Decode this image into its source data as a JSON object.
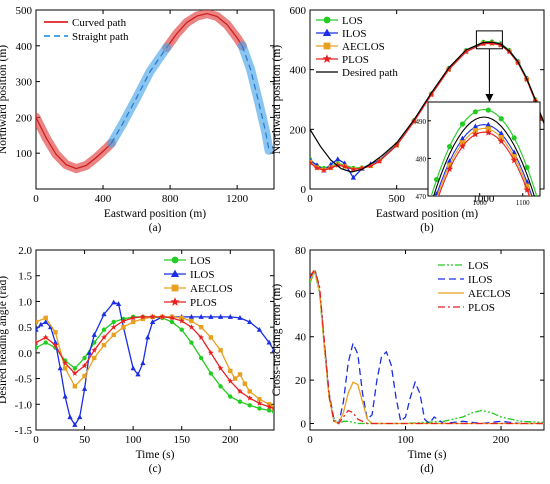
{
  "chart_data": [
    {
      "type": "line",
      "panel_label": "(a)",
      "xlabel": "Eastward position (m)",
      "ylabel": "Northward position (m)",
      "xlim": [
        0,
        1420
      ],
      "ylim": [
        0,
        500
      ],
      "xticks": [
        0,
        400,
        800,
        1200
      ],
      "yticks": [
        100,
        200,
        300,
        400,
        500
      ],
      "legend_position": "top-left",
      "series": [
        {
          "name": "Curved path",
          "color": "#e04040",
          "style": "solid-thick",
          "segments": [
            {
              "x": [
                0,
                60,
                120,
                180,
                240,
                300,
                360,
                420,
                450
              ],
              "y": [
                200,
                143,
                97,
                68,
                57,
                66,
                88,
                114,
                128
              ]
            },
            {
              "x": [
                780,
                840,
                900,
                960,
                1020,
                1080,
                1140,
                1200,
                1230
              ],
              "y": [
                395,
                434,
                465,
                483,
                490,
                482,
                459,
                422,
                400
              ]
            }
          ]
        },
        {
          "name": "Straight path",
          "color": "#4aa6e8",
          "style": "dashed-thick",
          "segments": [
            {
              "x": [
                450,
                520,
                600,
                680,
                780
              ],
              "y": [
                128,
                185,
                255,
                328,
                395
              ]
            },
            {
              "x": [
                1230,
                1280,
                1330,
                1370,
                1390
              ],
              "y": [
                400,
                335,
                240,
                160,
                108
              ]
            }
          ]
        }
      ]
    },
    {
      "type": "line",
      "panel_label": "(b)",
      "xlabel": "Eastward position (m)",
      "ylabel": "Northward position (m)",
      "xlim": [
        0,
        1350
      ],
      "ylim": [
        0,
        600
      ],
      "xticks": [
        0,
        500,
        1000
      ],
      "yticks": [
        0,
        200,
        400,
        600
      ],
      "legend_position": "top-left",
      "series": [
        {
          "name": "LOS",
          "color": "#22cc22",
          "marker": "circle",
          "x": [
            0,
            40,
            80,
            120,
            160,
            200,
            250,
            300,
            350,
            400,
            500,
            600,
            700,
            800,
            900,
            1000,
            1050,
            1100,
            1150,
            1200,
            1250,
            1300,
            1330
          ],
          "y": [
            100,
            78,
            70,
            76,
            86,
            80,
            70,
            72,
            80,
            96,
            150,
            230,
            320,
            405,
            465,
            493,
            494,
            488,
            465,
            428,
            372,
            300,
            240
          ]
        },
        {
          "name": "ILOS",
          "color": "#1a2ee6",
          "marker": "triangle",
          "x": [
            0,
            40,
            80,
            120,
            160,
            200,
            250,
            300,
            350,
            400,
            500,
            600,
            700,
            800,
            900,
            1000,
            1050,
            1100,
            1150,
            1200,
            1250,
            1300,
            1330
          ],
          "y": [
            95,
            80,
            62,
            82,
            100,
            86,
            38,
            68,
            84,
            96,
            148,
            228,
            318,
            402,
            462,
            489,
            490,
            484,
            463,
            426,
            370,
            298,
            238
          ]
        },
        {
          "name": "AECLOS",
          "color": "#e8a020",
          "marker": "square",
          "x": [
            0,
            40,
            80,
            120,
            160,
            200,
            250,
            300,
            350,
            400,
            500,
            600,
            700,
            800,
            900,
            1000,
            1050,
            1100,
            1150,
            1200,
            1250,
            1300,
            1330
          ],
          "y": [
            90,
            72,
            64,
            72,
            82,
            76,
            66,
            70,
            78,
            94,
            147,
            227,
            317,
            401,
            461,
            488,
            489,
            483,
            461,
            424,
            368,
            296,
            236
          ]
        },
        {
          "name": "PLOS",
          "color": "#e82020",
          "marker": "star",
          "x": [
            0,
            40,
            80,
            120,
            160,
            200,
            250,
            300,
            350,
            400,
            500,
            600,
            700,
            800,
            900,
            1000,
            1050,
            1100,
            1150,
            1200,
            1250,
            1300,
            1330
          ],
          "y": [
            88,
            70,
            63,
            70,
            80,
            75,
            66,
            69,
            77,
            93,
            146,
            226,
            316,
            400,
            460,
            487,
            488,
            482,
            460,
            423,
            367,
            295,
            235
          ]
        },
        {
          "name": "Desired path",
          "color": "#000000",
          "marker": "none",
          "x": [
            0,
            60,
            120,
            180,
            240,
            300,
            360,
            420,
            500,
            600,
            700,
            800,
            900,
            1000,
            1050,
            1100,
            1150,
            1200,
            1250,
            1300,
            1350
          ],
          "y": [
            200,
            143,
            97,
            68,
            57,
            66,
            88,
            114,
            155,
            232,
            322,
            406,
            466,
            491,
            492,
            486,
            463,
            426,
            370,
            300,
            220
          ]
        }
      ],
      "inset": {
        "xlim": [
          880,
          1140
        ],
        "ylim": [
          470,
          495
        ],
        "xticks": [
          1000,
          1100
        ],
        "yticks": [
          470,
          480,
          490
        ],
        "series_peak": [
          {
            "name": "LOS",
            "peak": 493
          },
          {
            "name": "ILOS",
            "peak": 489
          },
          {
            "name": "AECLOS",
            "peak": 488
          },
          {
            "name": "PLOS",
            "peak": 487
          },
          {
            "name": "Desired path",
            "peak": 491
          }
        ]
      }
    },
    {
      "type": "line",
      "panel_label": "(c)",
      "xlabel": "Time (s)",
      "ylabel": "Desired heading angle (rad)",
      "xlim": [
        0,
        245
      ],
      "ylim": [
        -1.5,
        2.0
      ],
      "xticks": [
        0,
        50,
        100,
        150,
        200
      ],
      "yticks": [
        -1.5,
        -1.0,
        -0.5,
        0.0,
        0.5,
        1.0,
        1.5,
        2.0
      ],
      "legend_position": "top-right",
      "series": [
        {
          "name": "LOS",
          "color": "#22cc22",
          "marker": "circle",
          "x": [
            0,
            10,
            20,
            30,
            40,
            50,
            60,
            70,
            80,
            90,
            100,
            110,
            120,
            130,
            140,
            150,
            160,
            170,
            180,
            190,
            200,
            210,
            220,
            230,
            240,
            245
          ],
          "y": [
            0.1,
            0.2,
            0.1,
            -0.15,
            -0.3,
            -0.1,
            0.2,
            0.45,
            0.6,
            0.66,
            0.7,
            0.7,
            0.7,
            0.68,
            0.6,
            0.45,
            0.2,
            -0.1,
            -0.4,
            -0.65,
            -0.85,
            -0.95,
            -1.02,
            -1.08,
            -1.12,
            -1.14
          ]
        },
        {
          "name": "ILOS",
          "color": "#1a2ee6",
          "marker": "triangle",
          "x": [
            0,
            5,
            10,
            15,
            20,
            25,
            30,
            35,
            40,
            45,
            50,
            55,
            60,
            70,
            80,
            85,
            90,
            100,
            105,
            110,
            115,
            120,
            130,
            140,
            150,
            160,
            170,
            180,
            190,
            200,
            210,
            220,
            230,
            240,
            245
          ],
          "y": [
            0.45,
            0.55,
            0.6,
            0.5,
            0.2,
            -0.3,
            -0.85,
            -1.25,
            -1.4,
            -1.25,
            -0.7,
            0.0,
            0.35,
            0.75,
            0.98,
            0.95,
            0.5,
            -0.3,
            -0.42,
            -0.2,
            0.3,
            0.6,
            0.7,
            0.7,
            0.7,
            0.7,
            0.7,
            0.7,
            0.7,
            0.7,
            0.68,
            0.6,
            0.45,
            0.2,
            0.05
          ]
        },
        {
          "name": "AECLOS",
          "color": "#e8a020",
          "marker": "square",
          "x": [
            0,
            10,
            20,
            30,
            40,
            50,
            60,
            70,
            80,
            90,
            100,
            110,
            120,
            130,
            140,
            150,
            160,
            170,
            180,
            190,
            200,
            205,
            210,
            215,
            220,
            230,
            240,
            245
          ],
          "y": [
            0.6,
            0.68,
            0.4,
            -0.3,
            -0.65,
            -0.45,
            -0.1,
            0.15,
            0.35,
            0.5,
            0.6,
            0.66,
            0.7,
            0.7,
            0.7,
            0.68,
            0.62,
            0.5,
            0.3,
            0.05,
            -0.35,
            -0.5,
            -0.42,
            -0.6,
            -0.75,
            -0.9,
            -1.0,
            -1.05
          ]
        },
        {
          "name": "PLOS",
          "color": "#e82020",
          "marker": "star",
          "x": [
            0,
            10,
            20,
            30,
            40,
            50,
            60,
            70,
            80,
            90,
            100,
            110,
            120,
            130,
            140,
            150,
            160,
            170,
            180,
            190,
            200,
            210,
            220,
            230,
            240,
            245
          ],
          "y": [
            0.2,
            0.3,
            0.15,
            -0.2,
            -0.4,
            -0.25,
            0.05,
            0.3,
            0.5,
            0.62,
            0.68,
            0.7,
            0.7,
            0.7,
            0.68,
            0.62,
            0.5,
            0.3,
            0.0,
            -0.3,
            -0.55,
            -0.75,
            -0.88,
            -0.98,
            -1.05,
            -1.08
          ]
        }
      ]
    },
    {
      "type": "line",
      "panel_label": "(d)",
      "xlabel": "Time (s)",
      "ylabel": "Cross-tracking error (m)",
      "xlim": [
        0,
        245
      ],
      "ylim": [
        -3,
        80
      ],
      "xticks": [
        0,
        100,
        200
      ],
      "yticks": [
        0,
        20,
        40,
        60,
        80
      ],
      "legend_position": "top-right",
      "series": [
        {
          "name": "LOS",
          "color": "#22cc22",
          "style": "dash-dot-dot",
          "x": [
            0,
            5,
            10,
            15,
            20,
            25,
            30,
            35,
            40,
            50,
            60,
            80,
            100,
            120,
            140,
            160,
            170,
            180,
            190,
            200,
            220,
            245
          ],
          "y": [
            65,
            70,
            60,
            35,
            12,
            2,
            0,
            1,
            1,
            0,
            0,
            0,
            0,
            0.5,
            1,
            3,
            5,
            6,
            5,
            3,
            1,
            0.5
          ]
        },
        {
          "name": "ILOS",
          "color": "#1a2ee6",
          "style": "dashed",
          "x": [
            0,
            5,
            10,
            15,
            20,
            25,
            30,
            35,
            40,
            45,
            50,
            55,
            60,
            65,
            70,
            75,
            80,
            85,
            90,
            95,
            100,
            105,
            110,
            115,
            120,
            125,
            130,
            140,
            160,
            180,
            200,
            220,
            245
          ],
          "y": [
            67,
            71,
            62,
            38,
            14,
            2,
            0,
            10,
            28,
            37,
            32,
            14,
            2,
            4,
            20,
            31,
            33,
            27,
            12,
            1,
            3,
            12,
            19,
            14,
            2,
            0,
            3,
            0,
            1,
            0,
            1,
            0,
            0
          ]
        },
        {
          "name": "AECLOS",
          "color": "#e8a020",
          "style": "solid",
          "x": [
            0,
            5,
            10,
            15,
            20,
            25,
            30,
            35,
            40,
            45,
            50,
            55,
            60,
            65,
            70,
            80,
            100,
            150,
            200,
            245
          ],
          "y": [
            66,
            70,
            61,
            36,
            12,
            1,
            0,
            5,
            14,
            19,
            18,
            10,
            2,
            0,
            0,
            0,
            0,
            0,
            0,
            0
          ]
        },
        {
          "name": "PLOS",
          "color": "#e82020",
          "style": "dash-dot",
          "x": [
            0,
            5,
            10,
            15,
            20,
            25,
            30,
            35,
            40,
            45,
            50,
            60,
            80,
            100,
            150,
            200,
            245
          ],
          "y": [
            68,
            71,
            63,
            38,
            13,
            1,
            0,
            3,
            6,
            5,
            2,
            0,
            0,
            0,
            0,
            0,
            0
          ]
        }
      ]
    }
  ]
}
